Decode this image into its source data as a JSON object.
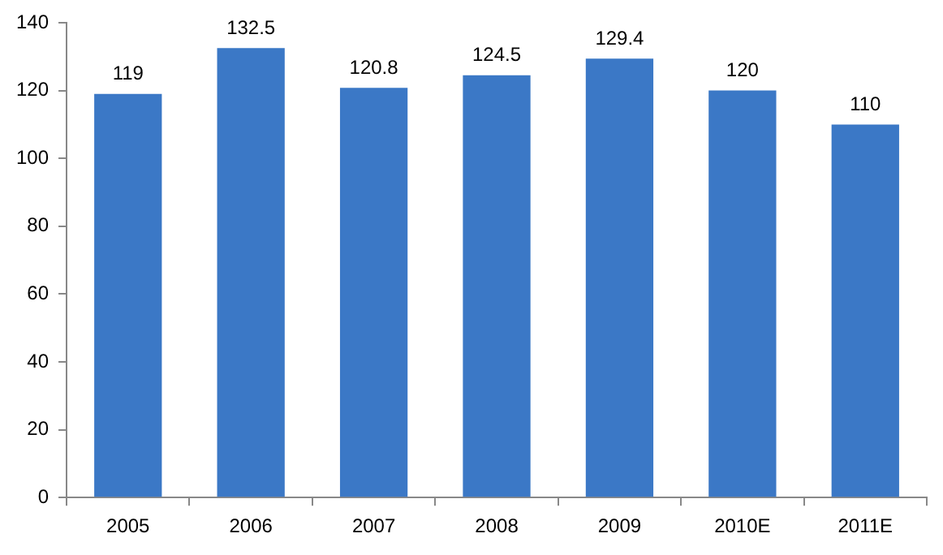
{
  "chart_data": {
    "type": "bar",
    "categories": [
      "2005",
      "2006",
      "2007",
      "2008",
      "2009",
      "2010E",
      "2011E"
    ],
    "values": [
      119,
      132.5,
      120.8,
      124.5,
      129.4,
      120,
      110
    ],
    "color": "#3b78c6",
    "ylim": [
      0,
      140
    ],
    "yticks": [
      0,
      20,
      40,
      60,
      80,
      100,
      120,
      140
    ],
    "grid": false,
    "legend": false,
    "data_labels": true
  }
}
